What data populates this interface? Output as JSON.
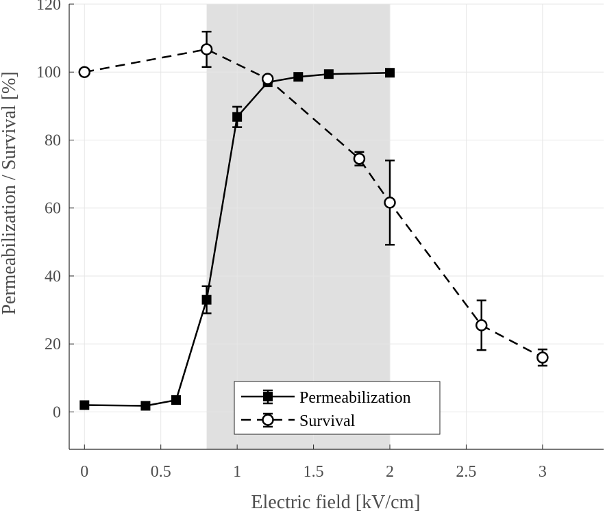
{
  "chart_data": {
    "type": "line",
    "title": "",
    "xlabel": "Electric field [kV/cm]",
    "ylabel": "Permeabilization / Survival [%]",
    "xlim": [
      -0.1,
      3.4
    ],
    "ylim": [
      -11,
      120
    ],
    "xticks": [
      0,
      0.5,
      1,
      1.5,
      2,
      2.5,
      3
    ],
    "xtick_labels": [
      "0",
      "0.5",
      "1",
      "1.5",
      "2",
      "2.5",
      "3"
    ],
    "yticks": [
      0,
      20,
      40,
      60,
      80,
      100,
      120
    ],
    "ytick_labels": [
      "0",
      "20",
      "40",
      "60",
      "80",
      "100",
      "120"
    ],
    "grid": true,
    "shaded_region": {
      "x_start": 0.8,
      "x_end": 2.0,
      "color": "#e0e0e0"
    },
    "legend_position": "bottom-center",
    "series": [
      {
        "name": "Permeabilization",
        "line_style": "solid",
        "marker": "square",
        "color": "#000000",
        "x": [
          0,
          0.4,
          0.6,
          0.8,
          1.0,
          1.2,
          1.4,
          1.6,
          2.0
        ],
        "y": [
          2,
          1.8,
          3.5,
          33,
          86.8,
          97,
          98.6,
          99.4,
          99.8
        ],
        "error": [
          0,
          0,
          0,
          4,
          3,
          0,
          0,
          0,
          0
        ]
      },
      {
        "name": "Survival",
        "line_style": "dashed",
        "marker": "circle",
        "color": "#000000",
        "x": [
          0,
          0.8,
          1.2,
          1.8,
          2.0,
          2.6,
          3.0
        ],
        "y": [
          100,
          106.7,
          98,
          74.5,
          61.6,
          25.5,
          16
        ],
        "error": [
          0,
          5.2,
          0,
          2,
          12.4,
          7.3,
          2.4
        ]
      }
    ]
  }
}
